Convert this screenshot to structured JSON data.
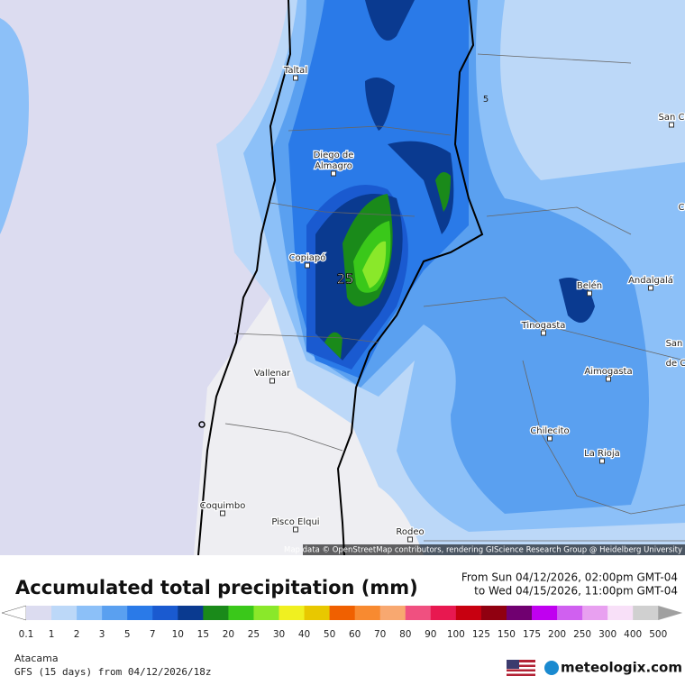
{
  "map": {
    "cities": [
      "Taltal",
      "Diego de",
      "Almagro",
      "Copiapó",
      "Vallenar",
      "Coquimbo",
      "Pisco Elqui",
      "Rodeo",
      "Belén",
      "Andalgalá",
      "Tinogasta",
      "Aimogasta",
      "Chilecito",
      "La Rioja",
      "San C",
      "C",
      "San",
      "de C"
    ],
    "annotations": [
      "25",
      "5"
    ],
    "attribution": "Map data © OpenStreetMap contributors, rendering GIScience Research Group @ Heidelberg University"
  },
  "footer": {
    "title": "Accumulated total precipitation (mm)",
    "from": "From Sun 04/12/2026, 02:00pm GMT-04",
    "to": "to Wed 04/15/2026, 11:00pm GMT-04",
    "region": "Atacama",
    "model": "GFS (15 days) from 04/12/2026/18z",
    "brand": "meteologix.com"
  },
  "legend": {
    "labels": [
      0.1,
      1,
      2,
      3,
      5,
      7,
      10,
      15,
      20,
      25,
      30,
      40,
      50,
      60,
      70,
      80,
      90,
      100,
      125,
      150,
      175,
      200,
      250,
      300,
      400,
      500
    ],
    "colors": [
      "#dcdcf0",
      "#bcd8f8",
      "#8cc0f8",
      "#5aa0f0",
      "#2a7ae8",
      "#1a5ad0",
      "#0a3a90",
      "#1a8a1a",
      "#3ac81a",
      "#8ae82a",
      "#f0f020",
      "#e8c800",
      "#f06000",
      "#f88a30",
      "#f8a870",
      "#f05080",
      "#e81850",
      "#c80010",
      "#900010",
      "#700070",
      "#c000f0",
      "#d060f0",
      "#e8a0f0",
      "#f8e0f8",
      "#d0d0d0"
    ],
    "low_color": "#ffffff",
    "high_color": "#a0a0a0"
  }
}
